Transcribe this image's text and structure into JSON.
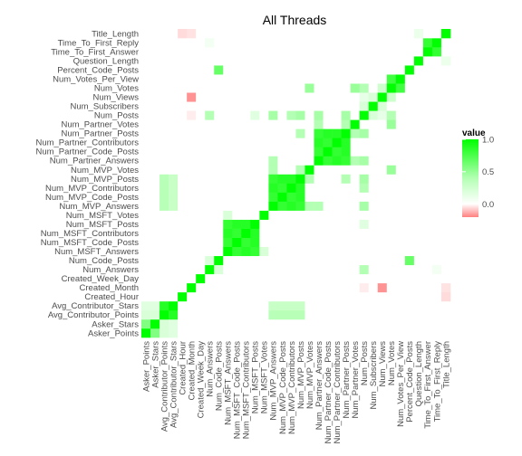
{
  "chart_data": {
    "type": "heatmap",
    "title": "All Threads",
    "xlabel": "",
    "ylabel": "",
    "variables": [
      "Asker_Points",
      "Asker_Stars",
      "Avg_Contributor_Points",
      "Avg_Contributor_Stars",
      "Created_Hour",
      "Created_Month",
      "Created_Week_Day",
      "Num_Answers",
      "Num_Code_Posts",
      "Num_MSFT_Answers",
      "Num_MSFT_Code_Posts",
      "Num_MSFT_Contributors",
      "Num_MSFT_Posts",
      "Num_MSFT_Votes",
      "Num_MVP_Answers",
      "Num_MVP_Code_Posts",
      "Num_MVP_Contributors",
      "Num_MVP_Posts",
      "Num_MVP_Votes",
      "Num_Partner_Answers",
      "Num_Partner_Code_Posts",
      "Num_Partner_Contributors",
      "Num_Partner_Posts",
      "Num_Partner_Votes",
      "Num_Posts",
      "Num_Subscribers",
      "Num_Views",
      "Num_Votes",
      "Num_Votes_Per_View",
      "Percent_Code_Posts",
      "Question_Length",
      "Time_To_First_Answer",
      "Time_To_First_Reply",
      "Title_Length"
    ],
    "legend": {
      "title": "value",
      "ticks": [
        1.0,
        0.5,
        0.0
      ],
      "tick_labels": [
        "1.0",
        "0.5",
        "0.0"
      ],
      "range": [
        -0.2,
        1.0
      ],
      "position": "right"
    },
    "colors": {
      "high": "#00ff00",
      "mid": "#ffffff",
      "low": "#ff8080"
    },
    "cells": [
      [
        "Asker_Points",
        "Asker_Stars",
        0.5
      ],
      [
        "Asker_Points",
        "Avg_Contributor_Points",
        0.15
      ],
      [
        "Asker_Points",
        "Avg_Contributor_Stars",
        0.12
      ],
      [
        "Asker_Stars",
        "Avg_Contributor_Points",
        0.15
      ],
      [
        "Asker_Stars",
        "Avg_Contributor_Stars",
        0.12
      ],
      [
        "Avg_Contributor_Points",
        "Avg_Contributor_Stars",
        0.85
      ],
      [
        "Avg_Contributor_Points",
        "Num_MVP_Answers",
        0.28
      ],
      [
        "Avg_Contributor_Points",
        "Num_MVP_Code_Posts",
        0.28
      ],
      [
        "Avg_Contributor_Points",
        "Num_MVP_Contributors",
        0.28
      ],
      [
        "Avg_Contributor_Points",
        "Num_MVP_Posts",
        0.28
      ],
      [
        "Avg_Contributor_Stars",
        "Num_MVP_Answers",
        0.22
      ],
      [
        "Avg_Contributor_Stars",
        "Num_MVP_Code_Posts",
        0.22
      ],
      [
        "Avg_Contributor_Stars",
        "Num_MVP_Contributors",
        0.22
      ],
      [
        "Avg_Contributor_Stars",
        "Num_MVP_Posts",
        0.22
      ],
      [
        "Created_Month",
        "Num_Views",
        -0.3
      ],
      [
        "Created_Month",
        "Title_Length",
        -0.08
      ],
      [
        "Created_Hour",
        "Title_Length",
        -0.1
      ],
      [
        "Num_Answers",
        "Num_Code_Posts",
        0.15
      ],
      [
        "Num_Answers",
        "Num_Posts",
        0.3
      ],
      [
        "Num_Code_Posts",
        "Percent_Code_Posts",
        0.6
      ],
      [
        "Num_MSFT_Answers",
        "Num_MSFT_Code_Posts",
        0.8
      ],
      [
        "Num_MSFT_Answers",
        "Num_MSFT_Contributors",
        0.85
      ],
      [
        "Num_MSFT_Answers",
        "Num_MSFT_Posts",
        0.8
      ],
      [
        "Num_MSFT_Code_Posts",
        "Num_MSFT_Contributors",
        0.8
      ],
      [
        "Num_MSFT_Code_Posts",
        "Num_MSFT_Posts",
        0.85
      ],
      [
        "Num_MSFT_Contributors",
        "Num_MSFT_Posts",
        0.85
      ],
      [
        "Num_MSFT_Answers",
        "Num_MSFT_Votes",
        0.15
      ],
      [
        "Num_MSFT_Posts",
        "Num_Posts",
        0.12
      ],
      [
        "Num_MVP_Answers",
        "Num_MVP_Code_Posts",
        0.8
      ],
      [
        "Num_MVP_Answers",
        "Num_MVP_Contributors",
        0.85
      ],
      [
        "Num_MVP_Answers",
        "Num_MVP_Posts",
        0.8
      ],
      [
        "Num_MVP_Code_Posts",
        "Num_MVP_Contributors",
        0.8
      ],
      [
        "Num_MVP_Code_Posts",
        "Num_MVP_Posts",
        0.85
      ],
      [
        "Num_MVP_Contributors",
        "Num_MVP_Posts",
        0.85
      ],
      [
        "Num_MVP_Answers",
        "Num_MVP_Votes",
        0.3
      ],
      [
        "Num_MVP_Posts",
        "Num_MVP_Votes",
        0.3
      ],
      [
        "Num_MVP_Answers",
        "Num_Partner_Answers",
        0.3
      ],
      [
        "Num_MVP_Posts",
        "Num_Partner_Posts",
        0.3
      ],
      [
        "Num_MVP_Answers",
        "Num_Posts",
        0.35
      ],
      [
        "Num_MVP_Posts",
        "Num_Posts",
        0.35
      ],
      [
        "Num_MVP_Contributors",
        "Num_Posts",
        0.3
      ],
      [
        "Num_Partner_Answers",
        "Num_Partner_Code_Posts",
        0.8
      ],
      [
        "Num_Partner_Answers",
        "Num_Partner_Contributors",
        0.85
      ],
      [
        "Num_Partner_Answers",
        "Num_Partner_Posts",
        0.8
      ],
      [
        "Num_Partner_Code_Posts",
        "Num_Partner_Contributors",
        0.8
      ],
      [
        "Num_Partner_Code_Posts",
        "Num_Partner_Posts",
        0.85
      ],
      [
        "Num_Partner_Contributors",
        "Num_Partner_Posts",
        0.85
      ],
      [
        "Num_Partner_Answers",
        "Num_Partner_Votes",
        0.3
      ],
      [
        "Num_Partner_Posts",
        "Num_Partner_Votes",
        0.3
      ],
      [
        "Num_Partner_Answers",
        "Num_Posts",
        0.35
      ],
      [
        "Num_Partner_Posts",
        "Num_Posts",
        0.35
      ],
      [
        "Num_Posts",
        "Num_Votes",
        0.3
      ],
      [
        "Num_MVP_Votes",
        "Num_Votes",
        0.4
      ],
      [
        "Num_Partner_Votes",
        "Num_Votes",
        0.4
      ],
      [
        "Num_Subscribers",
        "Num_Views",
        0.15
      ],
      [
        "Num_Views",
        "Num_Votes",
        0.2
      ],
      [
        "Num_Votes",
        "Num_Votes_Per_View",
        0.75
      ],
      [
        "Num_Answers",
        "Time_To_First_Reply",
        0.05
      ],
      [
        "Time_To_First_Answer",
        "Time_To_First_Reply",
        0.8
      ],
      [
        "Question_Length",
        "Title_Length",
        0.08
      ],
      [
        "Created_Month",
        "Num_Posts",
        -0.05
      ],
      [
        "Num_Views",
        "Num_Posts",
        0.1
      ],
      [
        "Num_Subscribers",
        "Num_Posts",
        0.15
      ]
    ]
  }
}
